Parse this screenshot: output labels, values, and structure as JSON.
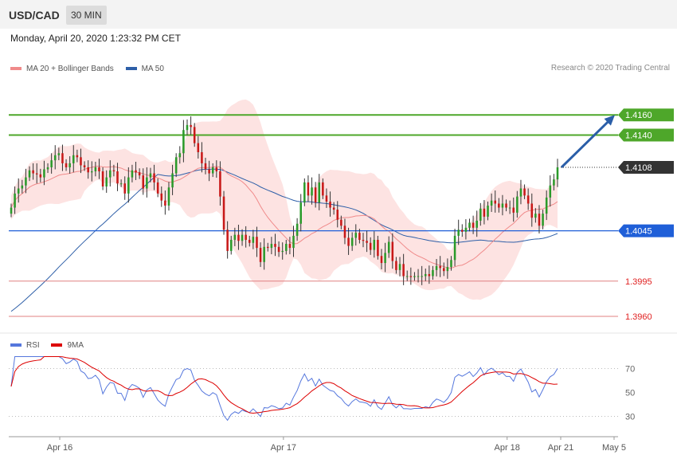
{
  "header": {
    "pair": "USD/CAD",
    "timeframe": "30 MIN"
  },
  "datetime": "Monday, April 20, 2020 1:23:32 PM CET",
  "legend": {
    "ma20_label": "MA 20 + Bollinger Bands",
    "ma50_label": "MA 50",
    "ma20_color": "#f08a8a",
    "ma50_color": "#2e5fa8",
    "research": "Research © 2020 Trading Central"
  },
  "rsi_legend": {
    "rsi_label": "RSI",
    "ma_label": "9MA",
    "rsi_color": "#5577dd",
    "ma_color": "#dd0000"
  },
  "chart_data": [
    {
      "type": "candlestick",
      "title": "USD/CAD 30 MIN",
      "ylim": [
        1.3945,
        1.4195
      ],
      "x_tick_labels": [
        "Apr 16",
        "Apr 17",
        "Apr 18",
        "Apr 21",
        "May 5"
      ],
      "levels": [
        {
          "label": "1.4160",
          "value": 1.416,
          "kind": "resistance",
          "color": "#4ea72a"
        },
        {
          "label": "1.4140",
          "value": 1.414,
          "kind": "resistance",
          "color": "#4ea72a"
        },
        {
          "label": "1.4108",
          "value": 1.4108,
          "kind": "last-price",
          "color": "#333333"
        },
        {
          "label": "1.4045",
          "value": 1.4045,
          "kind": "pivot",
          "color": "#1f5fd8"
        },
        {
          "label": "1.3995",
          "value": 1.3995,
          "kind": "support",
          "color": "#e08080"
        },
        {
          "label": "1.3960",
          "value": 1.396,
          "kind": "support",
          "color": "#e08080"
        }
      ],
      "candles_close": [
        1.4068,
        1.4082,
        1.4087,
        1.409,
        1.4098,
        1.4105,
        1.4102,
        1.4101,
        1.4098,
        1.4106,
        1.4108,
        1.4115,
        1.412,
        1.4122,
        1.4112,
        1.4108,
        1.4112,
        1.412,
        1.4118,
        1.411,
        1.4108,
        1.4103,
        1.4104,
        1.4108,
        1.4104,
        1.4089,
        1.4098,
        1.4105,
        1.4104,
        1.4092,
        1.4092,
        1.4082,
        1.4098,
        1.4105,
        1.4103,
        1.41,
        1.4087,
        1.4098,
        1.4102,
        1.4093,
        1.4082,
        1.4075,
        1.407,
        1.4088,
        1.4102,
        1.4118,
        1.4122,
        1.4145,
        1.415,
        1.4148,
        1.4132,
        1.4123,
        1.4112,
        1.4106,
        1.4102,
        1.4108,
        1.4104,
        1.4079,
        1.4046,
        1.4025,
        1.4036,
        1.4041,
        1.4035,
        1.4041,
        1.4036,
        1.4033,
        1.4039,
        1.4028,
        1.4014,
        1.4029,
        1.4028,
        1.4032,
        1.4029,
        1.4024,
        1.4025,
        1.4032,
        1.4028,
        1.404,
        1.4052,
        1.4073,
        1.4093,
        1.408,
        1.4088,
        1.4073,
        1.4093,
        1.408,
        1.4074,
        1.4068,
        1.4066,
        1.4056,
        1.405,
        1.4038,
        1.403,
        1.4038,
        1.4043,
        1.4036,
        1.4035,
        1.4033,
        1.4026,
        1.4036,
        1.402,
        1.4013,
        1.4023,
        1.4034,
        1.4015,
        1.4006,
        1.4012,
        1.4,
        1.4,
        1.3999,
        1.4,
        1.4,
        1.4,
        1.4002,
        1.4,
        1.4006,
        1.401,
        1.4008,
        1.4005,
        1.4009,
        1.4016,
        1.404,
        1.4046,
        1.4044,
        1.4048,
        1.4053,
        1.4048,
        1.4055,
        1.4067,
        1.4059,
        1.407,
        1.4075,
        1.4072,
        1.4068,
        1.4072,
        1.4068,
        1.4068,
        1.4063,
        1.4079,
        1.4087,
        1.408,
        1.4072,
        1.4058,
        1.4062,
        1.405,
        1.4062,
        1.4078,
        1.409,
        1.4096,
        1.4108
      ]
    },
    {
      "type": "line",
      "title": "RSI",
      "series": [
        {
          "name": "RSI"
        },
        {
          "name": "9MA"
        }
      ],
      "ylim": [
        15,
        85
      ],
      "y_tick_labels": [
        "70",
        "50",
        "30"
      ],
      "levels": [
        70,
        30
      ],
      "rsi_last": 70,
      "ma_last": 57
    }
  ]
}
